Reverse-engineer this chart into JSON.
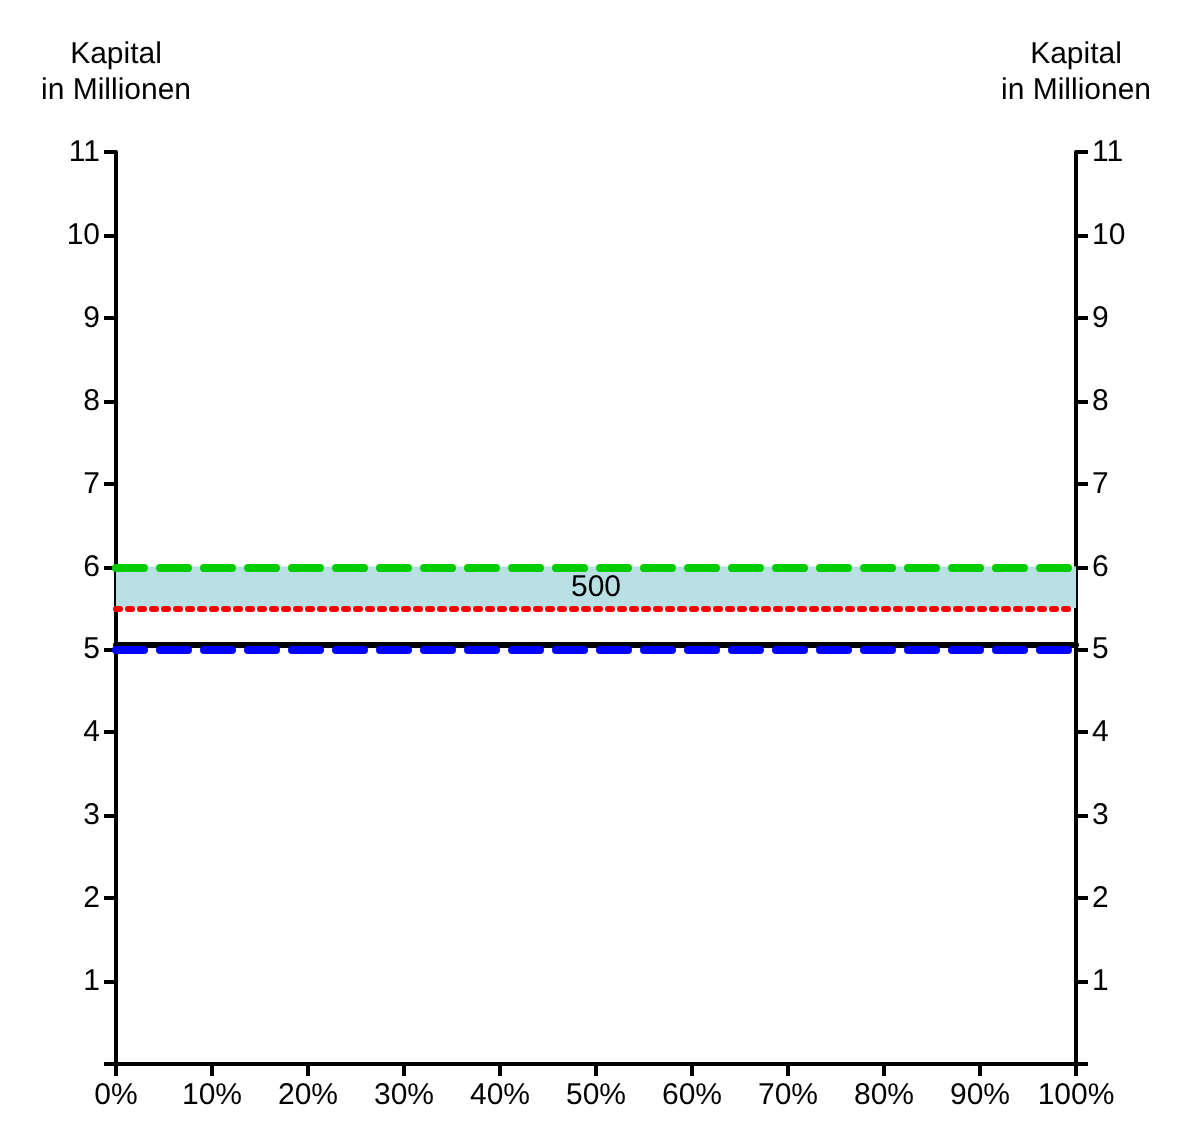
{
  "chart_data": {
    "type": "line",
    "ylabel": "Kapital\nin Millionen",
    "y2label": "Kapital\nin Millionen",
    "xlim": [
      0,
      100
    ],
    "xticks": [
      {
        "value": 0,
        "label": "0%"
      },
      {
        "value": 10,
        "label": "10%"
      },
      {
        "value": 20,
        "label": "20%"
      },
      {
        "value": 30,
        "label": "30%"
      },
      {
        "value": 40,
        "label": "40%"
      },
      {
        "value": 50,
        "label": "50%"
      },
      {
        "value": 60,
        "label": "60%"
      },
      {
        "value": 70,
        "label": "70%"
      },
      {
        "value": 80,
        "label": "80%"
      },
      {
        "value": 90,
        "label": "90%"
      },
      {
        "value": 100,
        "label": "100%"
      }
    ],
    "ylim": [
      0,
      11
    ],
    "yticks": [
      {
        "value": 0,
        "label": null
      },
      1,
      2,
      3,
      4,
      5,
      6,
      7,
      8,
      9,
      10,
      11
    ],
    "y2lim": [
      0,
      11
    ],
    "y2ticks": [
      {
        "value": 0,
        "label": null
      },
      1,
      2,
      3,
      4,
      5,
      6,
      7,
      8,
      9,
      10,
      11
    ],
    "bands": [
      {
        "axis": "y",
        "from": 5.5,
        "to": 6,
        "label": "500",
        "color": "#b8e0e4"
      }
    ],
    "ref_lines": [
      {
        "axis": "y",
        "value": 6,
        "color": "#00cc00",
        "line_style": "dashed"
      },
      {
        "axis": "y",
        "value": 5.5,
        "color": "#ff0000",
        "line_style": "dotted"
      },
      {
        "axis": "y",
        "value": 5.05,
        "color": "#000000",
        "line_style": "solid"
      },
      {
        "axis": "y",
        "value": 5,
        "color": "#0000ff",
        "line_style": "dashed"
      }
    ],
    "grid": false
  }
}
